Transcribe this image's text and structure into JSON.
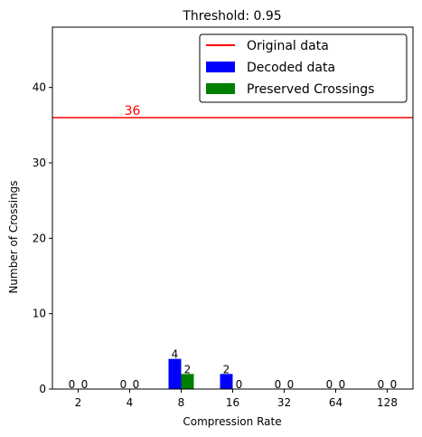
{
  "chart_data": {
    "type": "bar",
    "title": "Threshold: 0.95",
    "xlabel": "Compression Rate",
    "ylabel": "Number of Crossings",
    "categories": [
      "2",
      "4",
      "8",
      "16",
      "32",
      "64",
      "128"
    ],
    "ylim": [
      0,
      48
    ],
    "yticks": [
      0,
      10,
      20,
      30,
      40
    ],
    "grid": false,
    "legend_position": "top-right",
    "reference_line": {
      "name": "Original data",
      "value": 36,
      "label": "36",
      "color": "#ff0000"
    },
    "series": [
      {
        "name": "Decoded data",
        "color": "#0000ff",
        "values": [
          0,
          0,
          4,
          2,
          0,
          0,
          0
        ],
        "labels": [
          "0",
          "0",
          "4",
          "2",
          "0",
          "0",
          "0"
        ]
      },
      {
        "name": "Preserved Crossings",
        "color": "#008000",
        "values": [
          0,
          0,
          2,
          0,
          0,
          0,
          0
        ],
        "labels": [
          "0",
          "0",
          "2",
          "0",
          "0",
          "0",
          "0"
        ]
      }
    ]
  }
}
